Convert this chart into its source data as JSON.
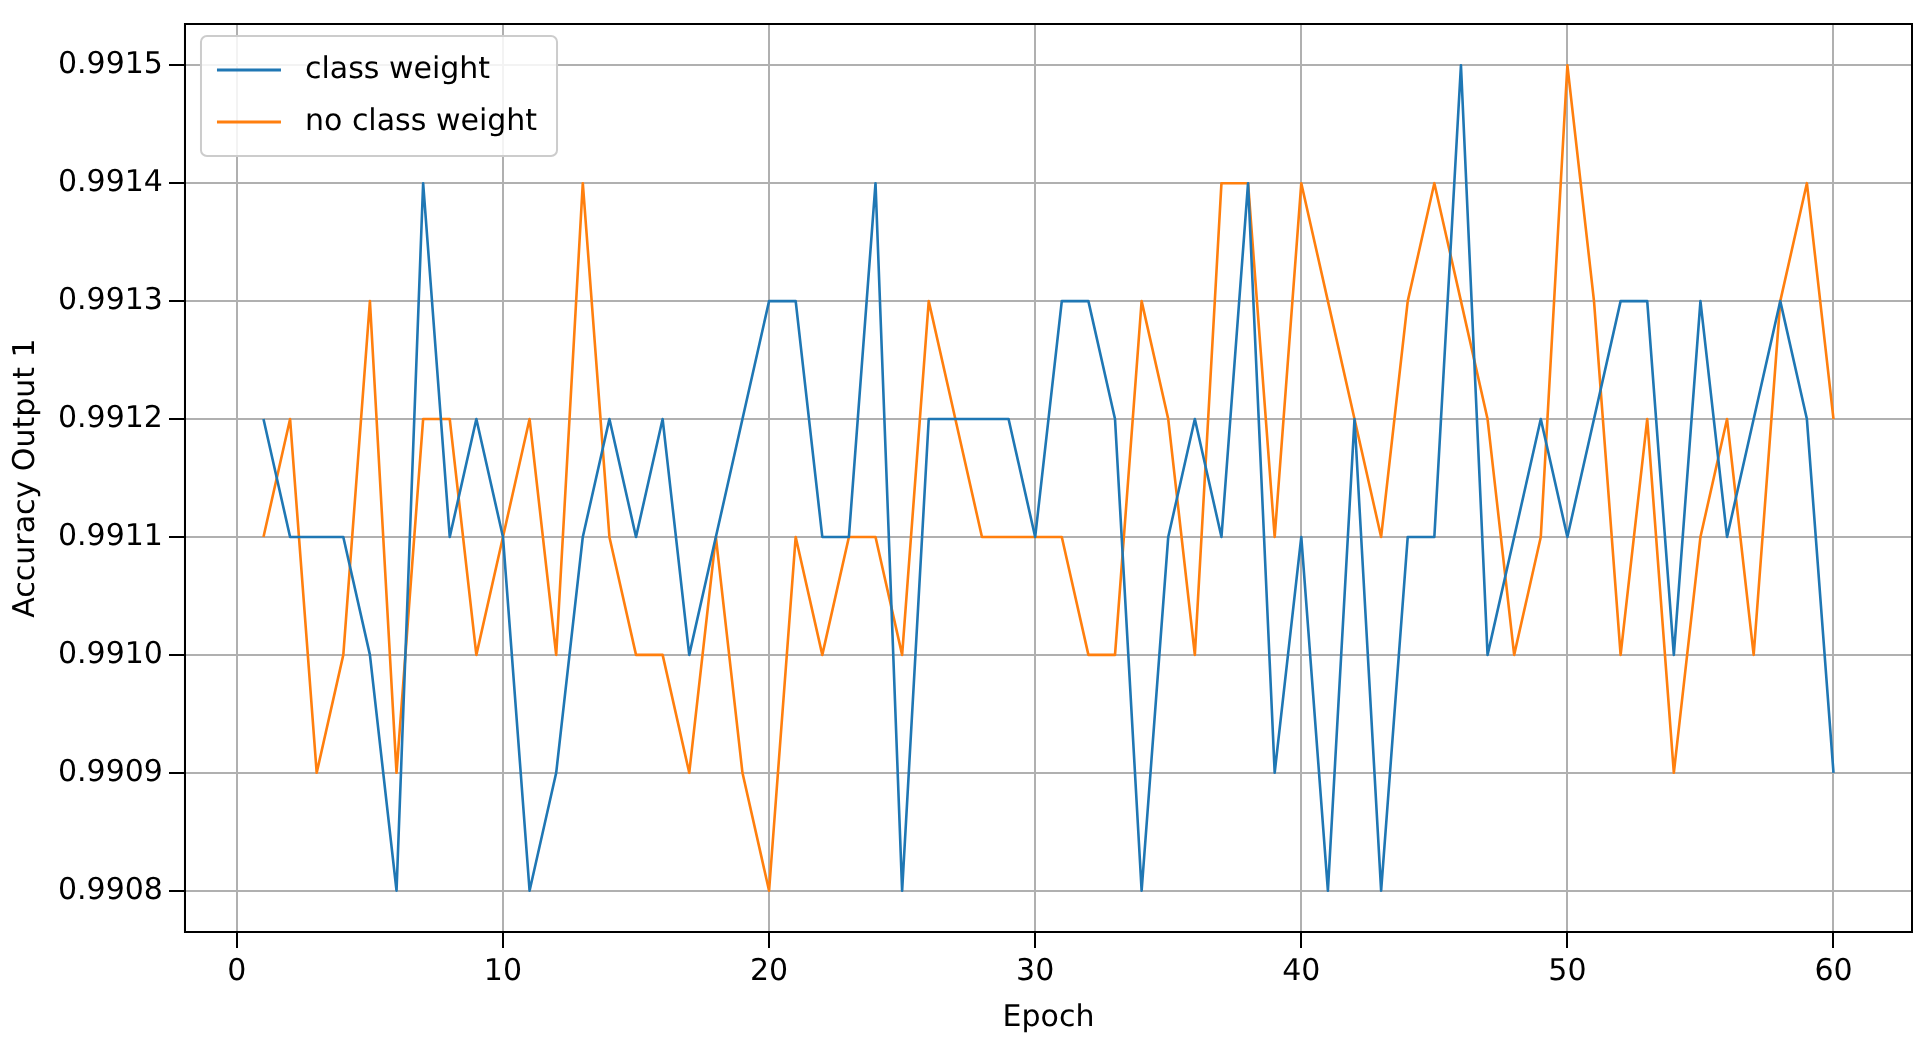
{
  "chart_data": {
    "type": "line",
    "xlabel": "Epoch",
    "ylabel": "Accuracy Output 1",
    "x": [
      1,
      2,
      3,
      4,
      5,
      6,
      7,
      8,
      9,
      10,
      11,
      12,
      13,
      14,
      15,
      16,
      17,
      18,
      19,
      20,
      21,
      22,
      23,
      24,
      25,
      26,
      27,
      28,
      29,
      30,
      31,
      32,
      33,
      34,
      35,
      36,
      37,
      38,
      39,
      40,
      41,
      42,
      43,
      44,
      45,
      46,
      47,
      48,
      49,
      50,
      51,
      52,
      53,
      54,
      55,
      56,
      57,
      58,
      59,
      60
    ],
    "series": [
      {
        "name": "class weight",
        "color": "#1f77b4",
        "values": [
          0.9912,
          0.9911,
          0.9911,
          0.9911,
          0.991,
          0.9908,
          0.9914,
          0.9911,
          0.9912,
          0.9911,
          0.9908,
          0.9909,
          0.9911,
          0.9912,
          0.9911,
          0.9912,
          0.991,
          0.9911,
          0.9912,
          0.9913,
          0.9913,
          0.9911,
          0.9911,
          0.9914,
          0.9908,
          0.9912,
          0.9912,
          0.9912,
          0.9912,
          0.9911,
          0.9913,
          0.9913,
          0.9912,
          0.9908,
          0.9911,
          0.9912,
          0.9911,
          0.9914,
          0.9909,
          0.9911,
          0.9908,
          0.9912,
          0.9908,
          0.9911,
          0.9911,
          0.9915,
          0.991,
          0.9911,
          0.9912,
          0.9911,
          0.9912,
          0.9913,
          0.9913,
          0.991,
          0.9913,
          0.9911,
          0.9912,
          0.9913,
          0.9912,
          0.9909
        ]
      },
      {
        "name": "no class weight",
        "color": "#ff7f0e",
        "values": [
          0.9911,
          0.9912,
          0.9909,
          0.991,
          0.9913,
          0.9909,
          0.9912,
          0.9912,
          0.991,
          0.9911,
          0.9912,
          0.991,
          0.9914,
          0.9911,
          0.991,
          0.991,
          0.9909,
          0.9911,
          0.9909,
          0.9908,
          0.9911,
          0.991,
          0.9911,
          0.9911,
          0.991,
          0.9913,
          0.9912,
          0.9911,
          0.9911,
          0.9911,
          0.9911,
          0.991,
          0.991,
          0.9913,
          0.9912,
          0.991,
          0.9914,
          0.9914,
          0.9911,
          0.9914,
          0.9913,
          0.9912,
          0.9911,
          0.9913,
          0.9914,
          0.9913,
          0.9912,
          0.991,
          0.9911,
          0.9915,
          0.9913,
          0.991,
          0.9912,
          0.9909,
          0.9911,
          0.9912,
          0.991,
          0.9913,
          0.9914,
          0.9912
        ]
      }
    ],
    "xlim": [
      -1.95,
      62.95
    ],
    "xticks": [
      0,
      10,
      20,
      30,
      40,
      50,
      60
    ],
    "ylim": [
      0.990765,
      0.991535
    ],
    "yticks": [
      0.9908,
      0.9909,
      {
        "value": 0.991,
        "label": "0.9910"
      },
      0.9911,
      0.9912,
      0.9913,
      0.9914,
      0.9915
    ],
    "grid": true,
    "legend": "top left",
    "marker": "none",
    "line_style": "solid"
  }
}
